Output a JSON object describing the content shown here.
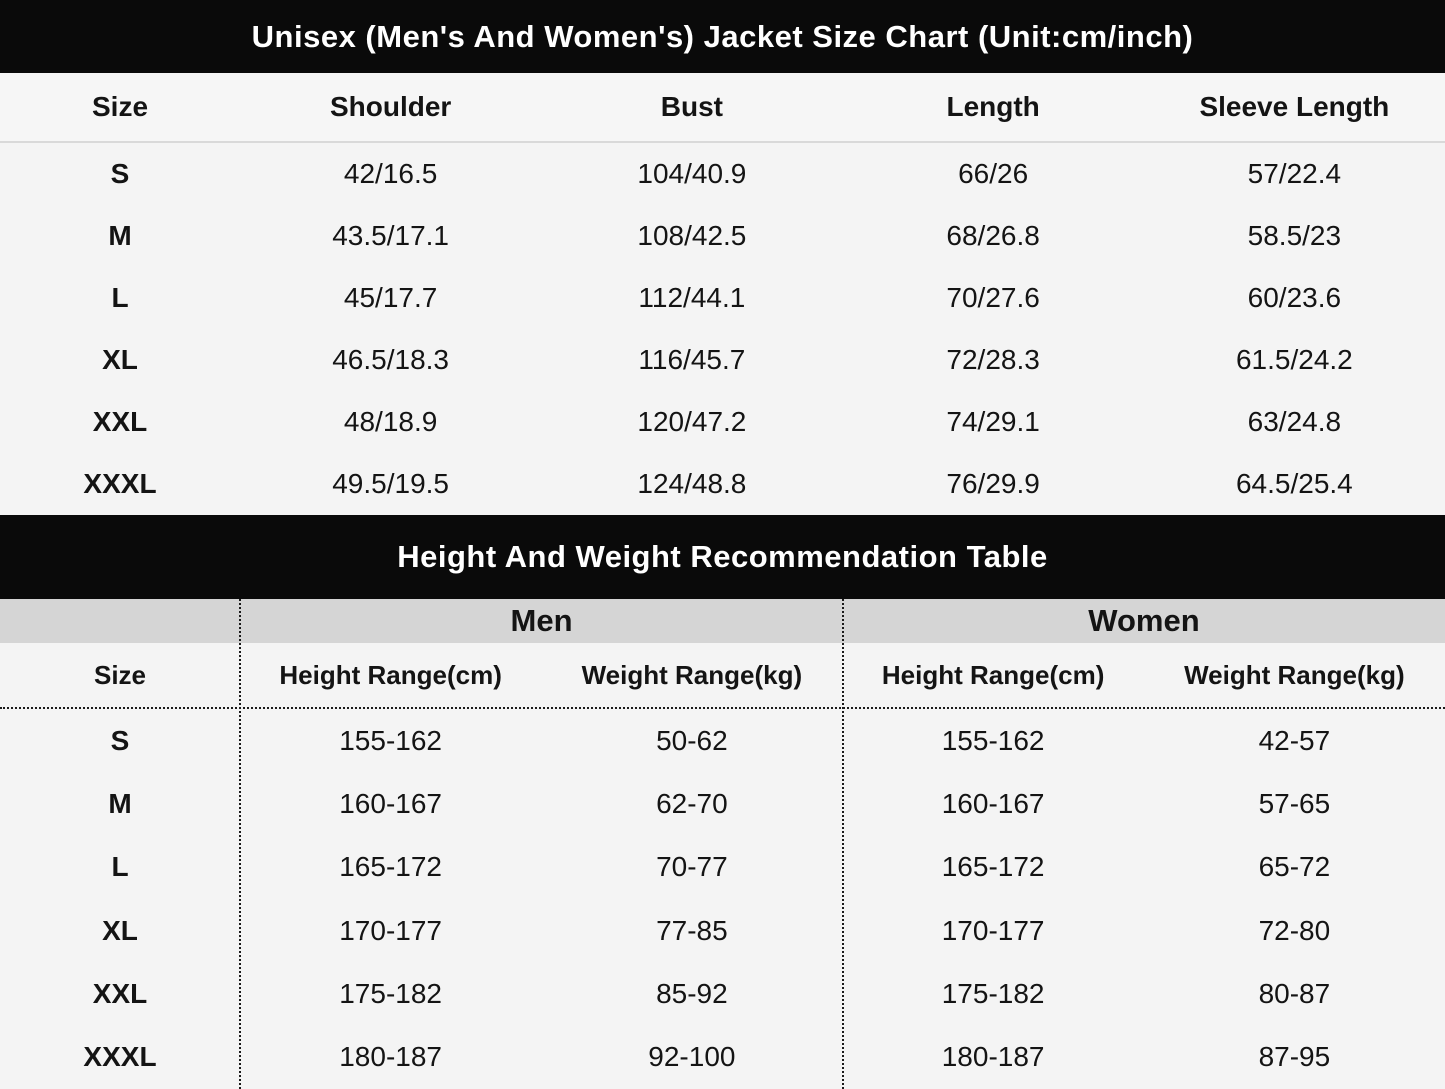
{
  "colors": {
    "title_bar_bg": "#0a0a0a",
    "title_bar_text": "#ffffff",
    "group_band_bg": "#d5d5d5",
    "page_bg": "#f4f4f4",
    "divider": "#d9d9d9",
    "dotted_line": "#1a1a1a",
    "text": "#141414"
  },
  "chart_data": [
    {
      "type": "table",
      "title": "Unisex (Men's And Women's) Jacket Size Chart (Unit:cm/inch)",
      "unit": "cm/inch",
      "columns": [
        "Size",
        "Shoulder",
        "Bust",
        "Length",
        "Sleeve Length"
      ],
      "rows": [
        [
          "S",
          "42/16.5",
          "104/40.9",
          "66/26",
          "57/22.4"
        ],
        [
          "M",
          "43.5/17.1",
          "108/42.5",
          "68/26.8",
          "58.5/23"
        ],
        [
          "L",
          "45/17.7",
          "112/44.1",
          "70/27.6",
          "60/23.6"
        ],
        [
          "XL",
          "46.5/18.3",
          "116/45.7",
          "72/28.3",
          "61.5/24.2"
        ],
        [
          "XXL",
          "48/18.9",
          "120/47.2",
          "74/29.1",
          "63/24.8"
        ],
        [
          "XXXL",
          "49.5/19.5",
          "124/48.8",
          "76/29.9",
          "64.5/25.4"
        ]
      ]
    },
    {
      "type": "table",
      "title": "Height And Weight Recommendation Table",
      "group_headers": [
        "Men",
        "Women"
      ],
      "columns": [
        "Size",
        "Height Range(cm)",
        "Weight Range(kg)",
        "Height Range(cm)",
        "Weight Range(kg)"
      ],
      "rows": [
        [
          "S",
          "155-162",
          "50-62",
          "155-162",
          "42-57"
        ],
        [
          "M",
          "160-167",
          "62-70",
          "160-167",
          "57-65"
        ],
        [
          "L",
          "165-172",
          "70-77",
          "165-172",
          "65-72"
        ],
        [
          "XL",
          "170-177",
          "77-85",
          "170-177",
          "72-80"
        ],
        [
          "XXL",
          "175-182",
          "85-92",
          "175-182",
          "80-87"
        ],
        [
          "XXXL",
          "180-187",
          "92-100",
          "180-187",
          "87-95"
        ]
      ]
    }
  ]
}
